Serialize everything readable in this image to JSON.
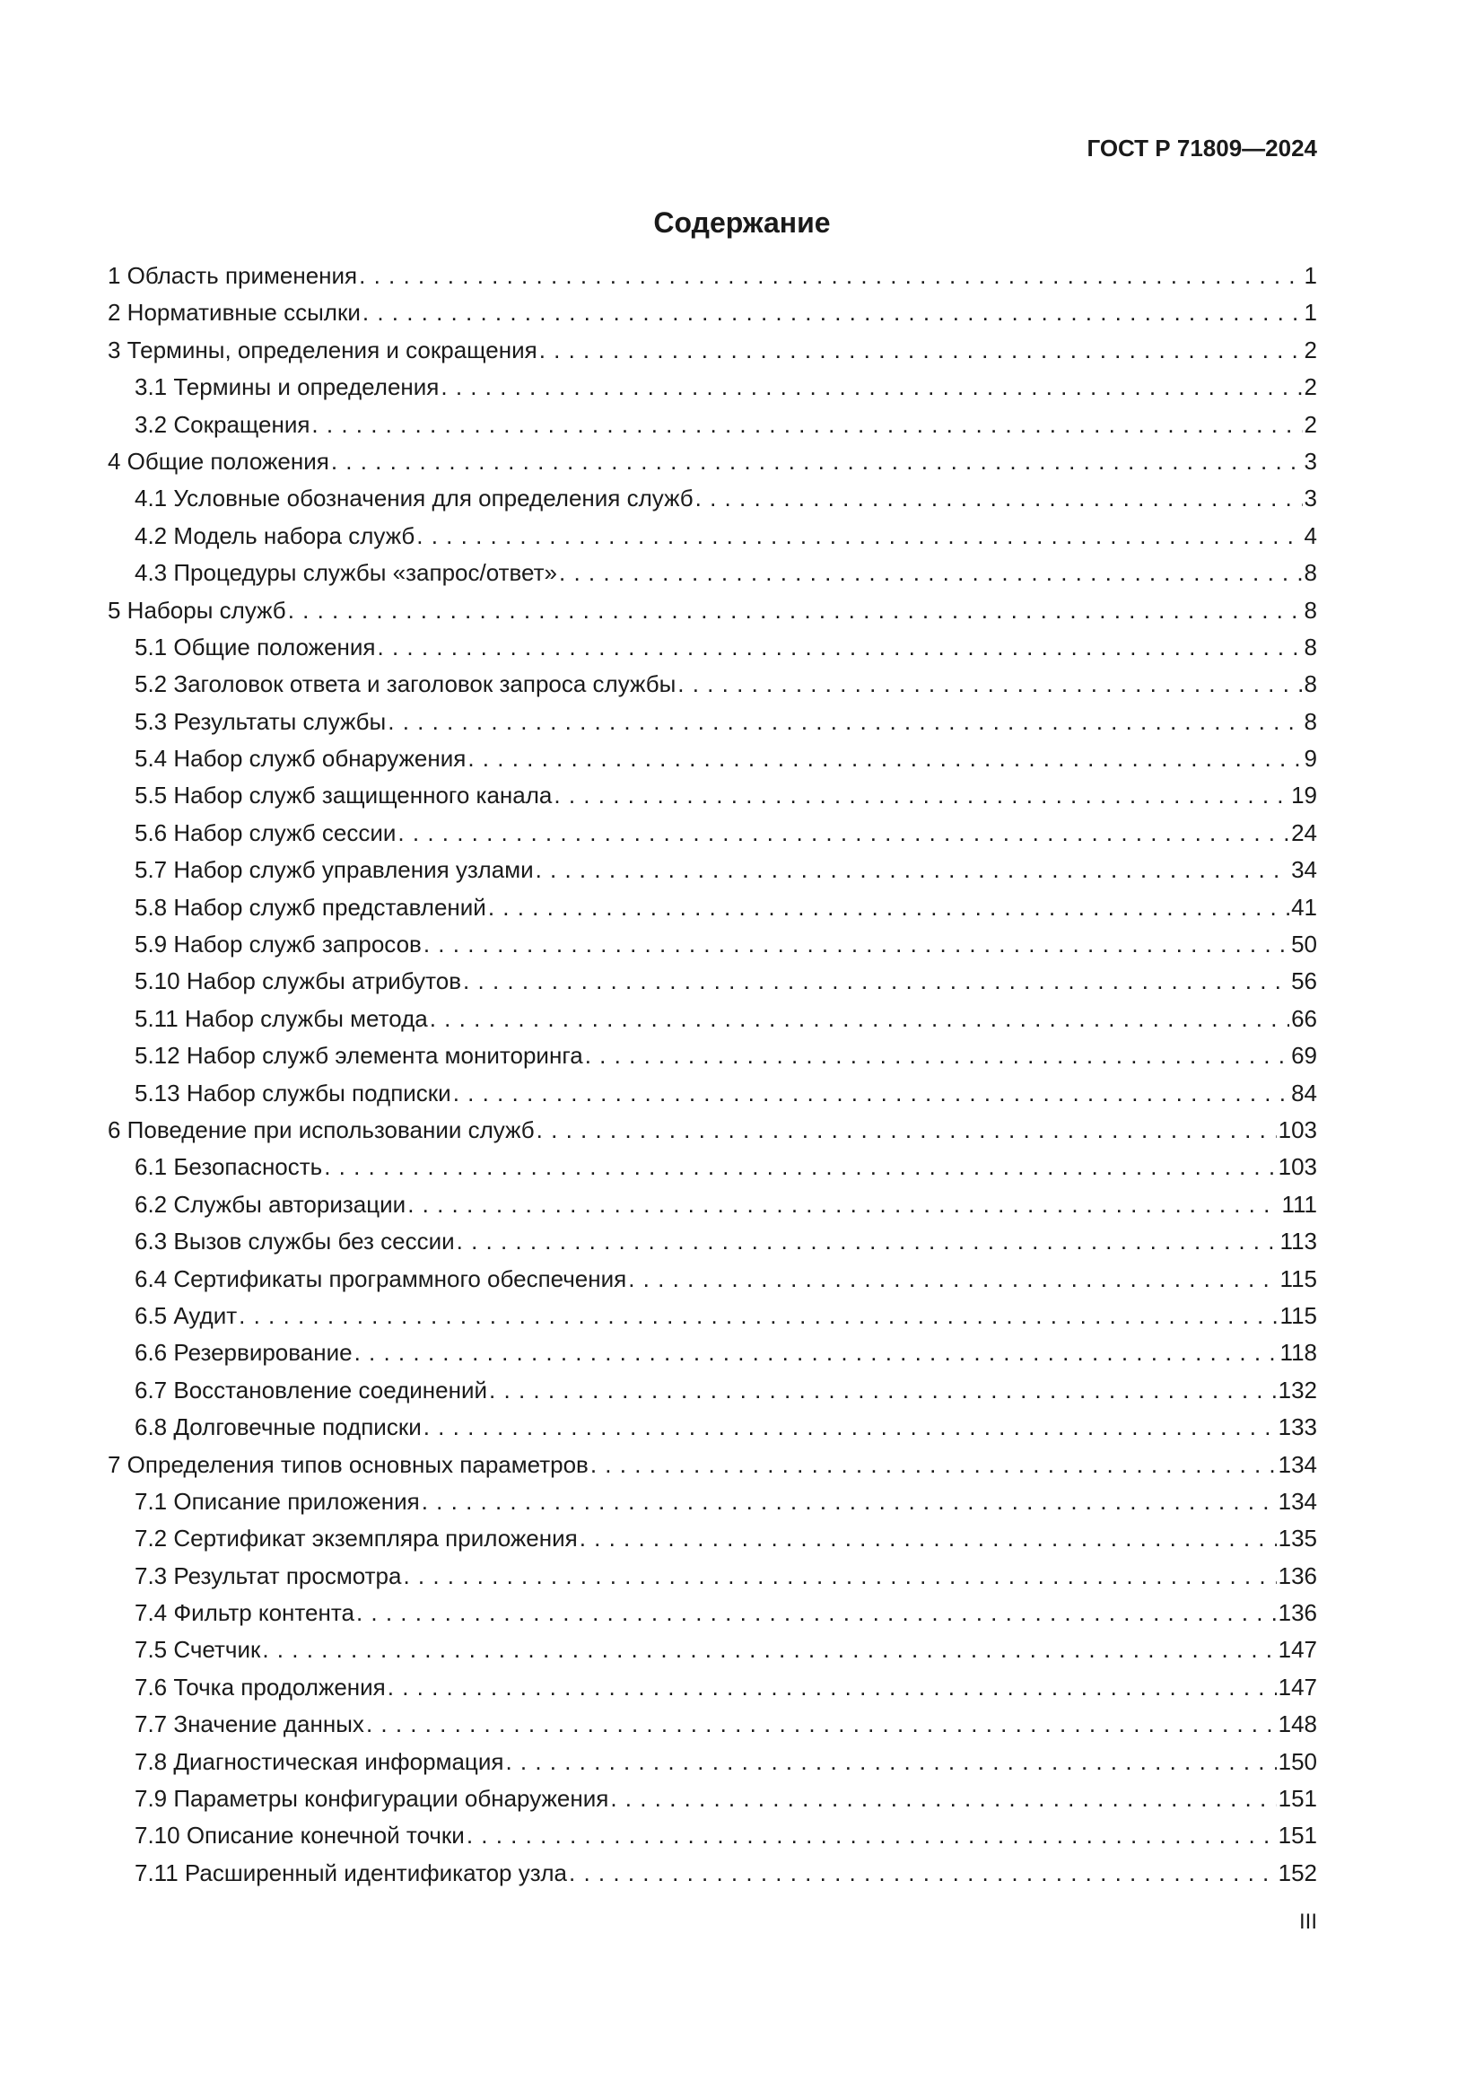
{
  "header": {
    "doc_code": "ГОСТ Р 71809—2024"
  },
  "toc": {
    "title": "Содержание",
    "entries": [
      {
        "label": "1 Область применения",
        "page": "1",
        "level": 1
      },
      {
        "label": "2 Нормативные ссылки",
        "page": "1",
        "level": 1
      },
      {
        "label": "3 Термины, определения и сокращения",
        "page": "2",
        "level": 1
      },
      {
        "label": "3.1 Термины и определения",
        "page": "2",
        "level": 2
      },
      {
        "label": "3.2 Сокращения",
        "page": "2",
        "level": 2
      },
      {
        "label": "4 Общие положения",
        "page": "3",
        "level": 1
      },
      {
        "label": "4.1 Условные обозначения для определения служб",
        "page": "3",
        "level": 2
      },
      {
        "label": "4.2 Модель набора служб",
        "page": "4",
        "level": 2
      },
      {
        "label": "4.3 Процедуры службы «запрос/ответ»",
        "page": "8",
        "level": 2
      },
      {
        "label": "5 Наборы служб",
        "page": "8",
        "level": 1
      },
      {
        "label": "5.1 Общие положения",
        "page": "8",
        "level": 2
      },
      {
        "label": "5.2 Заголовок ответа и заголовок запроса службы",
        "page": "8",
        "level": 2
      },
      {
        "label": "5.3 Результаты службы",
        "page": "8",
        "level": 2
      },
      {
        "label": "5.4 Набор служб обнаружения",
        "page": "9",
        "level": 2
      },
      {
        "label": "5.5 Набор служб защищенного канала",
        "page": "19",
        "level": 2
      },
      {
        "label": "5.6 Набор служб сессии",
        "page": "24",
        "level": 2
      },
      {
        "label": "5.7 Набор служб управления узлами",
        "page": "34",
        "level": 2
      },
      {
        "label": "5.8 Набор служб представлений",
        "page": "41",
        "level": 2
      },
      {
        "label": "5.9 Набор служб запросов",
        "page": "50",
        "level": 2
      },
      {
        "label": "5.10 Набор службы атрибутов",
        "page": "56",
        "level": 2
      },
      {
        "label": "5.11 Набор службы метода",
        "page": "66",
        "level": 2
      },
      {
        "label": "5.12 Набор служб элемента мониторинга",
        "page": "69",
        "level": 2
      },
      {
        "label": "5.13 Набор службы подписки",
        "page": "84",
        "level": 2
      },
      {
        "label": "6  Поведение при использовании служб",
        "page": "103",
        "level": 1
      },
      {
        "label": "6.1 Безопасность",
        "page": "103",
        "level": 2
      },
      {
        "label": "6.2 Службы авторизации",
        "page": "111",
        "level": 2
      },
      {
        "label": "6.3 Вызов службы без сессии",
        "page": "113",
        "level": 2
      },
      {
        "label": "6.4 Сертификаты программного обеспечения",
        "page": "115",
        "level": 2
      },
      {
        "label": "6.5 Аудит",
        "page": "115",
        "level": 2
      },
      {
        "label": "6.6 Резервирование",
        "page": "118",
        "level": 2
      },
      {
        "label": "6.7 Восстановление соединений",
        "page": "132",
        "level": 2
      },
      {
        "label": "6.8 Долговечные подписки",
        "page": "133",
        "level": 2
      },
      {
        "label": "7 Определения типов основных параметров",
        "page": "134",
        "level": 1
      },
      {
        "label": "7.1 Описание приложения",
        "page": "134",
        "level": 2
      },
      {
        "label": "7.2 Сертификат экземпляра приложения",
        "page": "135",
        "level": 2
      },
      {
        "label": "7.3 Результат просмотра",
        "page": "136",
        "level": 2
      },
      {
        "label": "7.4 Фильтр контента",
        "page": "136",
        "level": 2
      },
      {
        "label": "7.5 Счетчик",
        "page": "147",
        "level": 2
      },
      {
        "label": "7.6 Точка продолжения",
        "page": "147",
        "level": 2
      },
      {
        "label": "7.7 Значение данных",
        "page": "148",
        "level": 2
      },
      {
        "label": "7.8 Диагностическая информация",
        "page": "150",
        "level": 2
      },
      {
        "label": "7.9 Параметры конфигурации обнаружения",
        "page": "151",
        "level": 2
      },
      {
        "label": "7.10 Описание конечной точки",
        "page": "151",
        "level": 2
      },
      {
        "label": "7.11 Расширенный идентификатор узла",
        "page": "152",
        "level": 2
      }
    ]
  },
  "footer": {
    "page_number": "III"
  }
}
